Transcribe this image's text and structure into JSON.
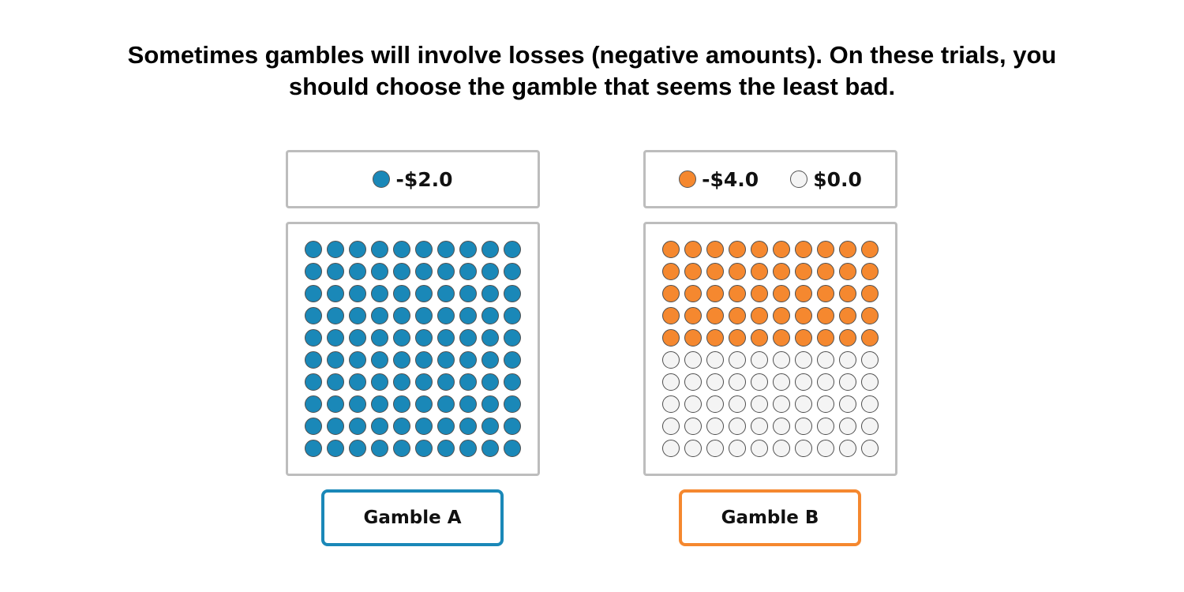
{
  "instructions": "Sometimes gambles will involve losses (negative amounts). On these trials, you should choose the gamble that seems the least bad.",
  "gamble_a": {
    "outcomes": [
      {
        "label": "-$2.0",
        "color": "#1a88b8",
        "count": 100
      }
    ],
    "button_label": "Gamble A",
    "button_color": "#1a88b8"
  },
  "gamble_b": {
    "outcomes": [
      {
        "label": "-$4.0",
        "color": "#f5882f",
        "count": 50
      },
      {
        "label": "$0.0",
        "color": "#f4f4f4",
        "count": 50
      }
    ],
    "button_label": "Gamble B",
    "button_color": "#f5882f"
  }
}
